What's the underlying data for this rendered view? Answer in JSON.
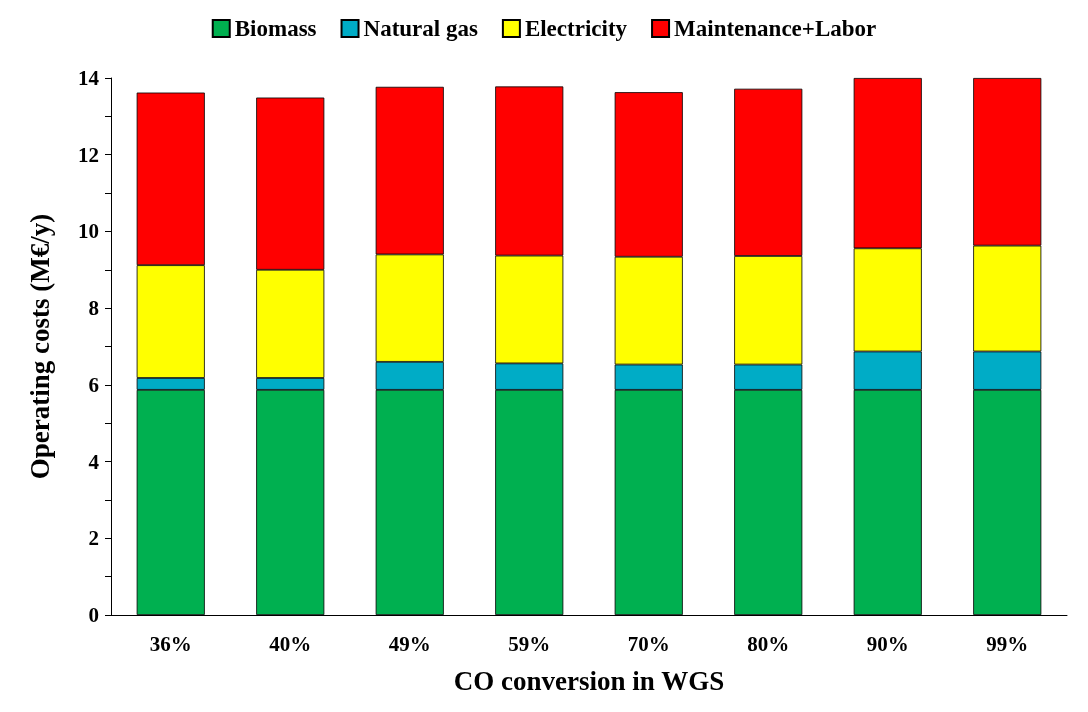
{
  "chart_data": {
    "type": "bar",
    "stacked": true,
    "xlabel": "CO conversion in WGS",
    "ylabel": "Operating costs (M€/y)",
    "categories": [
      "36%",
      "40%",
      "49%",
      "59%",
      "70%",
      "80%",
      "90%",
      "99%"
    ],
    "series": [
      {
        "name": "Biomass",
        "color": "#00b050",
        "values": [
          5.87,
          5.87,
          5.87,
          5.87,
          5.87,
          5.87,
          5.87,
          5.87
        ]
      },
      {
        "name": "Natural gas",
        "color": "#00acc6",
        "values": [
          0.31,
          0.31,
          0.73,
          0.69,
          0.66,
          0.66,
          1.0,
          1.0
        ]
      },
      {
        "name": "Electricity",
        "color": "#ffff00",
        "values": [
          2.94,
          2.82,
          2.8,
          2.81,
          2.81,
          2.83,
          2.69,
          2.76
        ]
      },
      {
        "name": "Maintenance+Labor",
        "color": "#ff0000",
        "values": [
          4.5,
          4.49,
          4.37,
          4.41,
          4.29,
          4.36,
          4.44,
          4.37
        ]
      }
    ],
    "ylim": [
      0,
      14
    ],
    "yticks": [
      0,
      {
        "value": 1,
        "label": null
      },
      2,
      {
        "value": 3,
        "label": null
      },
      4,
      {
        "value": 5,
        "label": null
      },
      6,
      {
        "value": 7,
        "label": null
      },
      8,
      {
        "value": 9,
        "label": null
      },
      10,
      {
        "value": 11,
        "label": null
      },
      12,
      {
        "value": 13,
        "label": null
      },
      14
    ],
    "grid": false,
    "legend": "top"
  }
}
